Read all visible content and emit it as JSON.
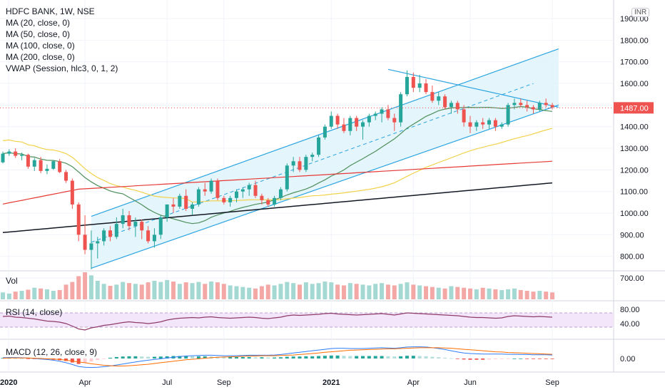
{
  "header": {
    "symbol_line": "HDFC BANK, 1W, NSE",
    "indicators": [
      "MA (20, close, 0)",
      "MA (50, close, 0)",
      "MA (100, close, 0)",
      "MA (200, close, 0)",
      "VWAP (Session, hlc3, 0, 1, 2)"
    ],
    "currency_badge": "INR"
  },
  "colors": {
    "up": "#26a69a",
    "down": "#ef5350",
    "ma20": "#4d8f5a",
    "ma50": "#f2d24b",
    "ma100": "#e53935",
    "ma200": "#131722",
    "channel": "#2aa4e0",
    "channel_fill": "#dff3fb",
    "rsi": "#8e3b6a",
    "rsi_band": "#f3e6fb",
    "macd": "#2e7cf6",
    "signal": "#ff6d00"
  },
  "chart_data": [
    {
      "type": "candlestick",
      "title": "HDFC BANK, 1W, NSE",
      "price_scale": {
        "ticks": [
          "700.00",
          "800.00",
          "900.00",
          "1000.00",
          "1100.00",
          "1200.00",
          "1300.00",
          "1400.00",
          "1500.00",
          "1600.00",
          "1700.00",
          "1800.00",
          "1900.00"
        ],
        "range": [
          700,
          1920
        ]
      },
      "time_axis": {
        "labels": [
          "2020",
          "Apr",
          "Jul",
          "Sep",
          "2021",
          "Apr",
          "Jun",
          "Sep"
        ],
        "label_weeks": [
          0,
          13,
          26,
          35,
          52,
          65,
          74,
          87
        ],
        "total_weeks": 95
      },
      "last_price": "1487.00",
      "candles_ohlc": [
        [
          1235,
          1285,
          1230,
          1275
        ],
        [
          1275,
          1295,
          1265,
          1285
        ],
        [
          1285,
          1300,
          1255,
          1265
        ],
        [
          1265,
          1280,
          1245,
          1270
        ],
        [
          1270,
          1275,
          1205,
          1215
        ],
        [
          1215,
          1255,
          1195,
          1245
        ],
        [
          1245,
          1260,
          1185,
          1195
        ],
        [
          1195,
          1225,
          1180,
          1205
        ],
        [
          1205,
          1245,
          1200,
          1240
        ],
        [
          1240,
          1250,
          1185,
          1190
        ],
        [
          1190,
          1200,
          1140,
          1150
        ],
        [
          1150,
          1160,
          1020,
          1040
        ],
        [
          1040,
          1050,
          870,
          900
        ],
        [
          900,
          990,
          810,
          830
        ],
        [
          830,
          920,
          740,
          860
        ],
        [
          860,
          890,
          790,
          870
        ],
        [
          870,
          930,
          850,
          920
        ],
        [
          920,
          940,
          870,
          890
        ],
        [
          890,
          980,
          880,
          950
        ],
        [
          950,
          1020,
          930,
          990
        ],
        [
          990,
          1010,
          920,
          940
        ],
        [
          940,
          980,
          890,
          960
        ],
        [
          960,
          970,
          880,
          920
        ],
        [
          920,
          940,
          860,
          870
        ],
        [
          870,
          930,
          840,
          900
        ],
        [
          900,
          990,
          880,
          980
        ],
        [
          980,
          1040,
          960,
          1040
        ],
        [
          1040,
          1070,
          1000,
          1030
        ],
        [
          1030,
          1090,
          1020,
          1080
        ],
        [
          1080,
          1110,
          1010,
          1020
        ],
        [
          1020,
          1050,
          990,
          1040
        ],
        [
          1040,
          1120,
          1030,
          1110
        ],
        [
          1110,
          1140,
          1080,
          1100
        ],
        [
          1100,
          1160,
          1090,
          1150
        ],
        [
          1150,
          1160,
          1060,
          1070
        ],
        [
          1070,
          1080,
          1040,
          1050
        ],
        [
          1050,
          1080,
          1030,
          1070
        ],
        [
          1070,
          1110,
          1050,
          1100
        ],
        [
          1100,
          1120,
          1070,
          1110
        ],
        [
          1110,
          1140,
          1080,
          1130
        ],
        [
          1130,
          1150,
          1070,
          1080
        ],
        [
          1080,
          1090,
          1040,
          1060
        ],
        [
          1060,
          1070,
          1030,
          1040
        ],
        [
          1040,
          1080,
          1030,
          1070
        ],
        [
          1070,
          1120,
          1060,
          1110
        ],
        [
          1110,
          1230,
          1100,
          1220
        ],
        [
          1220,
          1260,
          1190,
          1240
        ],
        [
          1240,
          1260,
          1190,
          1200
        ],
        [
          1200,
          1270,
          1190,
          1260
        ],
        [
          1260,
          1280,
          1240,
          1270
        ],
        [
          1270,
          1360,
          1260,
          1350
        ],
        [
          1350,
          1410,
          1340,
          1400
        ],
        [
          1400,
          1470,
          1390,
          1450
        ],
        [
          1450,
          1460,
          1390,
          1410
        ],
        [
          1410,
          1440,
          1370,
          1380
        ],
        [
          1380,
          1450,
          1360,
          1440
        ],
        [
          1440,
          1450,
          1380,
          1400
        ],
        [
          1400,
          1430,
          1340,
          1420
        ],
        [
          1420,
          1460,
          1400,
          1450
        ],
        [
          1450,
          1470,
          1430,
          1460
        ],
        [
          1460,
          1490,
          1420,
          1480
        ],
        [
          1480,
          1500,
          1430,
          1440
        ],
        [
          1440,
          1460,
          1380,
          1420
        ],
        [
          1420,
          1560,
          1400,
          1550
        ],
        [
          1550,
          1660,
          1540,
          1630
        ],
        [
          1630,
          1650,
          1560,
          1580
        ],
        [
          1580,
          1640,
          1560,
          1600
        ],
        [
          1600,
          1620,
          1550,
          1560
        ],
        [
          1560,
          1590,
          1510,
          1520
        ],
        [
          1520,
          1560,
          1500,
          1540
        ],
        [
          1540,
          1550,
          1480,
          1490
        ],
        [
          1490,
          1520,
          1460,
          1510
        ],
        [
          1510,
          1520,
          1460,
          1480
        ],
        [
          1480,
          1500,
          1400,
          1420
        ],
        [
          1420,
          1450,
          1370,
          1400
        ],
        [
          1400,
          1430,
          1380,
          1420
        ],
        [
          1420,
          1440,
          1390,
          1410
        ],
        [
          1410,
          1440,
          1390,
          1430
        ],
        [
          1430,
          1440,
          1380,
          1400
        ],
        [
          1400,
          1420,
          1390,
          1410
        ],
        [
          1410,
          1510,
          1400,
          1500
        ],
        [
          1500,
          1530,
          1480,
          1510
        ],
        [
          1510,
          1530,
          1490,
          1500
        ],
        [
          1500,
          1520,
          1470,
          1490
        ],
        [
          1490,
          1500,
          1460,
          1480
        ],
        [
          1480,
          1520,
          1470,
          1510
        ],
        [
          1510,
          1530,
          1490,
          1500
        ],
        [
          1500,
          1510,
          1480,
          1490
        ]
      ],
      "overlays": {
        "channel_upper": [
          [
            14,
            985
          ],
          [
            88,
            1760
          ]
        ],
        "channel_lower": [
          [
            14,
            745
          ],
          [
            88,
            1500
          ]
        ],
        "downtrend_line": [
          [
            61,
            1665
          ],
          [
            88,
            1490
          ]
        ]
      }
    },
    {
      "type": "bar",
      "title": "Vol",
      "note": "weekly volume histogram, relative values",
      "values": [
        18,
        15,
        20,
        22,
        25,
        30,
        28,
        26,
        22,
        24,
        38,
        45,
        60,
        70,
        62,
        48,
        40,
        35,
        38,
        45,
        42,
        40,
        38,
        44,
        48,
        45,
        50,
        46,
        40,
        44,
        42,
        45,
        40,
        46,
        44,
        40,
        36,
        34,
        32,
        30,
        28,
        34,
        38,
        36,
        40,
        45,
        42,
        38,
        44,
        40,
        42,
        46,
        44,
        38,
        36,
        42,
        40,
        38,
        36,
        40,
        42,
        38,
        36,
        40,
        44,
        38,
        36,
        34,
        32,
        30,
        28,
        34,
        32,
        30,
        28,
        26,
        30,
        28,
        26,
        24,
        26,
        28,
        24,
        22,
        20,
        22,
        20,
        18
      ]
    },
    {
      "type": "line",
      "title": "RSI (14, close)",
      "y_ticks": [
        "80.00",
        "40.00"
      ],
      "band": [
        30,
        70
      ],
      "values": [
        60,
        61,
        58,
        57,
        55,
        53,
        50,
        47,
        46,
        44,
        40,
        33,
        25,
        22,
        28,
        31,
        35,
        37,
        40,
        43,
        45,
        43,
        42,
        40,
        42,
        45,
        50,
        53,
        55,
        56,
        57,
        56,
        58,
        59,
        57,
        56,
        55,
        56,
        57,
        58,
        57,
        55,
        54,
        56,
        58,
        62,
        64,
        63,
        64,
        65,
        66,
        68,
        69,
        67,
        66,
        65,
        64,
        65,
        66,
        67,
        68,
        66,
        64,
        67,
        70,
        69,
        68,
        67,
        66,
        65,
        64,
        63,
        62,
        60,
        58,
        57,
        57,
        56,
        55,
        56,
        60,
        62,
        61,
        60,
        59,
        60,
        59,
        58
      ]
    },
    {
      "type": "line",
      "title": "MACD (12, 26, close, 9)",
      "y_ticks": [
        "0.00"
      ],
      "histogram": [
        2,
        2,
        1,
        0,
        -1,
        -2,
        -3,
        -4,
        -5,
        -7,
        -10,
        -16,
        -22,
        -18,
        -12,
        -6,
        -2,
        3,
        6,
        8,
        9,
        9,
        8,
        7,
        7,
        8,
        9,
        10,
        10,
        10,
        9,
        9,
        9,
        8,
        7,
        6,
        6,
        6,
        6,
        6,
        5,
        5,
        4,
        4,
        5,
        7,
        8,
        8,
        9,
        9,
        10,
        11,
        12,
        12,
        11,
        10,
        10,
        10,
        10,
        10,
        10,
        9,
        8,
        9,
        11,
        11,
        10,
        9,
        7,
        5,
        3,
        1,
        -2,
        -4,
        -5,
        -5,
        -5,
        -4,
        -3,
        -2,
        -1,
        0,
        0,
        -1,
        -1,
        -1,
        -1,
        -1
      ],
      "macd": [
        3,
        4,
        4,
        3,
        2,
        0,
        -2,
        -4,
        -7,
        -11,
        -17,
        -24,
        -32,
        -35,
        -36,
        -35,
        -33,
        -30,
        -26,
        -22,
        -18,
        -14,
        -10,
        -7,
        -4,
        -1,
        2,
        5,
        8,
        10,
        11,
        12,
        13,
        13,
        12,
        11,
        11,
        11,
        12,
        13,
        13,
        13,
        13,
        14,
        16,
        19,
        22,
        25,
        28,
        31,
        34,
        37,
        40,
        41,
        41,
        40,
        40,
        40,
        41,
        42,
        43,
        42,
        41,
        43,
        46,
        47,
        47,
        46,
        43,
        40,
        36,
        31,
        26,
        22,
        20,
        19,
        18,
        18,
        18,
        18,
        17,
        17,
        16,
        16,
        15,
        15,
        15,
        14
      ],
      "signal": [
        1,
        2,
        2,
        2,
        2,
        1,
        0,
        -1,
        -2,
        -4,
        -7,
        -10,
        -14,
        -17,
        -21,
        -24,
        -27,
        -29,
        -30,
        -30,
        -29,
        -27,
        -25,
        -23,
        -20,
        -17,
        -14,
        -11,
        -8,
        -5,
        -3,
        -1,
        1,
        3,
        5,
        6,
        7,
        8,
        9,
        10,
        10,
        11,
        11,
        11,
        12,
        13,
        14,
        16,
        18,
        20,
        22,
        25,
        27,
        29,
        31,
        33,
        34,
        35,
        36,
        37,
        38,
        39,
        39,
        40,
        41,
        42,
        43,
        43,
        43,
        43,
        42,
        41,
        39,
        37,
        35,
        33,
        31,
        29,
        27,
        26,
        24,
        23,
        22,
        21,
        20,
        19,
        18,
        17
      ]
    }
  ]
}
